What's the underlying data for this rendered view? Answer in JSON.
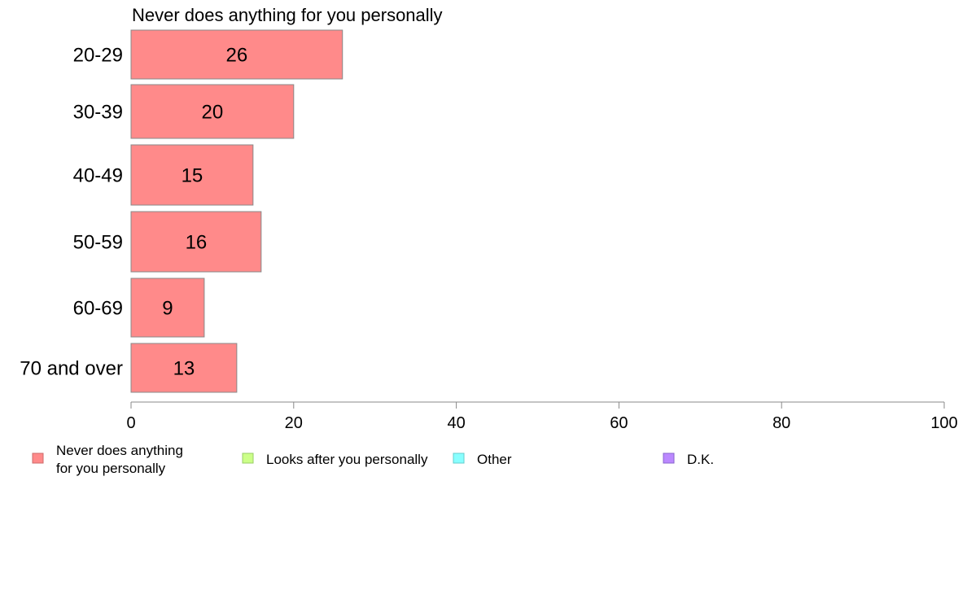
{
  "chart_data": {
    "type": "bar",
    "orientation": "horizontal",
    "title": "Never does anything for you personally",
    "categories": [
      "20-29",
      "30-39",
      "40-49",
      "50-59",
      "60-69",
      "70 and over"
    ],
    "series": [
      {
        "name": "Never does anything for you personally",
        "values": [
          26,
          20,
          15,
          16,
          9,
          13
        ]
      }
    ],
    "xlim": [
      0,
      100
    ],
    "x_ticks": [
      0,
      20,
      40,
      60,
      80,
      100
    ],
    "grid": false,
    "legend": {
      "placement": "bottom",
      "entries": [
        {
          "label_lines": [
            "Never does anything",
            "for you personally"
          ],
          "color": "#ff8a8a",
          "border": "#cc6b6b"
        },
        {
          "label_lines": [
            "Looks after you personally"
          ],
          "color": "#ccff88",
          "border": "#99cc66"
        },
        {
          "label_lines": [
            "Other"
          ],
          "color": "#88ffff",
          "border": "#66cccc"
        },
        {
          "label_lines": [
            "D.K."
          ],
          "color": "#bb88ff",
          "border": "#8866cc"
        }
      ]
    },
    "bar_color": "#ff8a8a"
  }
}
